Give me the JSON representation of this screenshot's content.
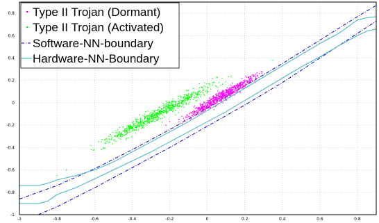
{
  "chart_data": {
    "type": "scatter",
    "title": "",
    "xlabel": "",
    "ylabel": "",
    "xlim": [
      -1,
      0.9
    ],
    "ylim": [
      -1,
      0.9
    ],
    "grid": true,
    "legend_position": "top-left",
    "x_ticks": [
      -1,
      -0.8,
      -0.6,
      -0.4,
      -0.2,
      0,
      0.2,
      0.4,
      0.6,
      0.8
    ],
    "x_tick_labels": [
      "-1",
      "-0.8",
      "-0.6",
      "-0.4",
      "-0.2",
      "0",
      "0.2",
      "0.4",
      "0.6",
      "0.8"
    ],
    "y_ticks": [
      -1,
      -0.8,
      -0.6,
      -0.4,
      -0.2,
      0,
      0.2,
      0.4,
      0.6,
      0.8
    ],
    "y_tick_labels": [
      "-1",
      "-0.8",
      "-0.6",
      "-0.4",
      "-0.2",
      "0",
      "0.2",
      "0.4",
      "0.6",
      "0.8"
    ],
    "series": [
      {
        "name": "Type II Trojan (Dormant)",
        "kind": "scatter",
        "color": "#ff00ff",
        "x_range": [
          -0.22,
          0.37
        ],
        "trend": {
          "slope": 1.0,
          "intercept": -0.02
        },
        "spread": 0.022,
        "point_count": 700,
        "outliers": [
          [
            -0.22,
            -0.2
          ],
          [
            -0.15,
            -0.15
          ],
          [
            -0.2,
            -0.17
          ]
        ]
      },
      {
        "name": "Type II Trojan (Activated)",
        "kind": "scatter",
        "color": "#00ff00",
        "x_range": [
          -0.7,
          0.2
        ],
        "trend": {
          "slope": 0.89,
          "intercept": 0.135
        },
        "spread": 0.028,
        "point_count": 700,
        "outliers": [
          [
            -0.8,
            -0.65
          ],
          [
            -0.75,
            -0.6
          ],
          [
            0.35,
            0.38
          ],
          [
            -0.45,
            -0.3
          ]
        ]
      },
      {
        "name": "Software-NN-boundary",
        "kind": "line",
        "color": "#0000cc",
        "dash": true,
        "lines": [
          [
            [
              -1,
              -0.86
            ],
            [
              -0.8,
              -0.74
            ],
            [
              -0.6,
              -0.59
            ],
            [
              -0.4,
              -0.42
            ],
            [
              -0.2,
              -0.24
            ],
            [
              0,
              -0.05
            ],
            [
              0.2,
              0.15
            ],
            [
              0.4,
              0.35
            ],
            [
              0.6,
              0.56
            ],
            [
              0.8,
              0.77
            ],
            [
              0.9,
              0.87
            ]
          ],
          [
            [
              -0.9,
              -1
            ],
            [
              -0.8,
              -0.93
            ],
            [
              -0.6,
              -0.76
            ],
            [
              -0.4,
              -0.58
            ],
            [
              -0.2,
              -0.4
            ],
            [
              0,
              -0.21
            ],
            [
              0.2,
              -0.02
            ],
            [
              0.4,
              0.18
            ],
            [
              0.6,
              0.4
            ],
            [
              0.8,
              0.62
            ],
            [
              0.9,
              0.73
            ]
          ]
        ]
      },
      {
        "name": "Hardware-NN-Boundary",
        "kind": "line",
        "color": "#4db8c4",
        "dash": false,
        "lines": [
          [
            [
              -1,
              -0.74
            ],
            [
              -0.9,
              -0.74
            ],
            [
              -0.85,
              -0.72
            ],
            [
              -0.8,
              -0.69
            ],
            [
              -0.7,
              -0.65
            ],
            [
              -0.6,
              -0.6
            ],
            [
              -0.5,
              -0.53
            ],
            [
              -0.4,
              -0.44
            ],
            [
              -0.3,
              -0.35
            ],
            [
              -0.2,
              -0.26
            ],
            [
              -0.1,
              -0.17
            ],
            [
              0,
              -0.07
            ],
            [
              0.1,
              0.03
            ],
            [
              0.2,
              0.13
            ],
            [
              0.3,
              0.23
            ],
            [
              0.4,
              0.33
            ],
            [
              0.5,
              0.43
            ],
            [
              0.6,
              0.53
            ],
            [
              0.7,
              0.62
            ],
            [
              0.75,
              0.68
            ],
            [
              0.8,
              0.74
            ],
            [
              0.85,
              0.76
            ],
            [
              0.9,
              0.77
            ]
          ],
          [
            [
              -1,
              -0.9
            ],
            [
              -0.9,
              -0.9
            ],
            [
              -0.85,
              -0.88
            ],
            [
              -0.8,
              -0.82
            ],
            [
              -0.7,
              -0.76
            ],
            [
              -0.6,
              -0.68
            ],
            [
              -0.5,
              -0.6
            ],
            [
              -0.4,
              -0.52
            ],
            [
              -0.3,
              -0.44
            ],
            [
              -0.2,
              -0.35
            ],
            [
              -0.1,
              -0.26
            ],
            [
              0,
              -0.17
            ],
            [
              0.1,
              -0.08
            ],
            [
              0.2,
              0.02
            ],
            [
              0.3,
              0.12
            ],
            [
              0.4,
              0.22
            ],
            [
              0.5,
              0.32
            ],
            [
              0.6,
              0.41
            ],
            [
              0.7,
              0.51
            ],
            [
              0.8,
              0.6
            ],
            [
              0.85,
              0.64
            ],
            [
              0.9,
              0.66
            ]
          ]
        ]
      }
    ]
  }
}
